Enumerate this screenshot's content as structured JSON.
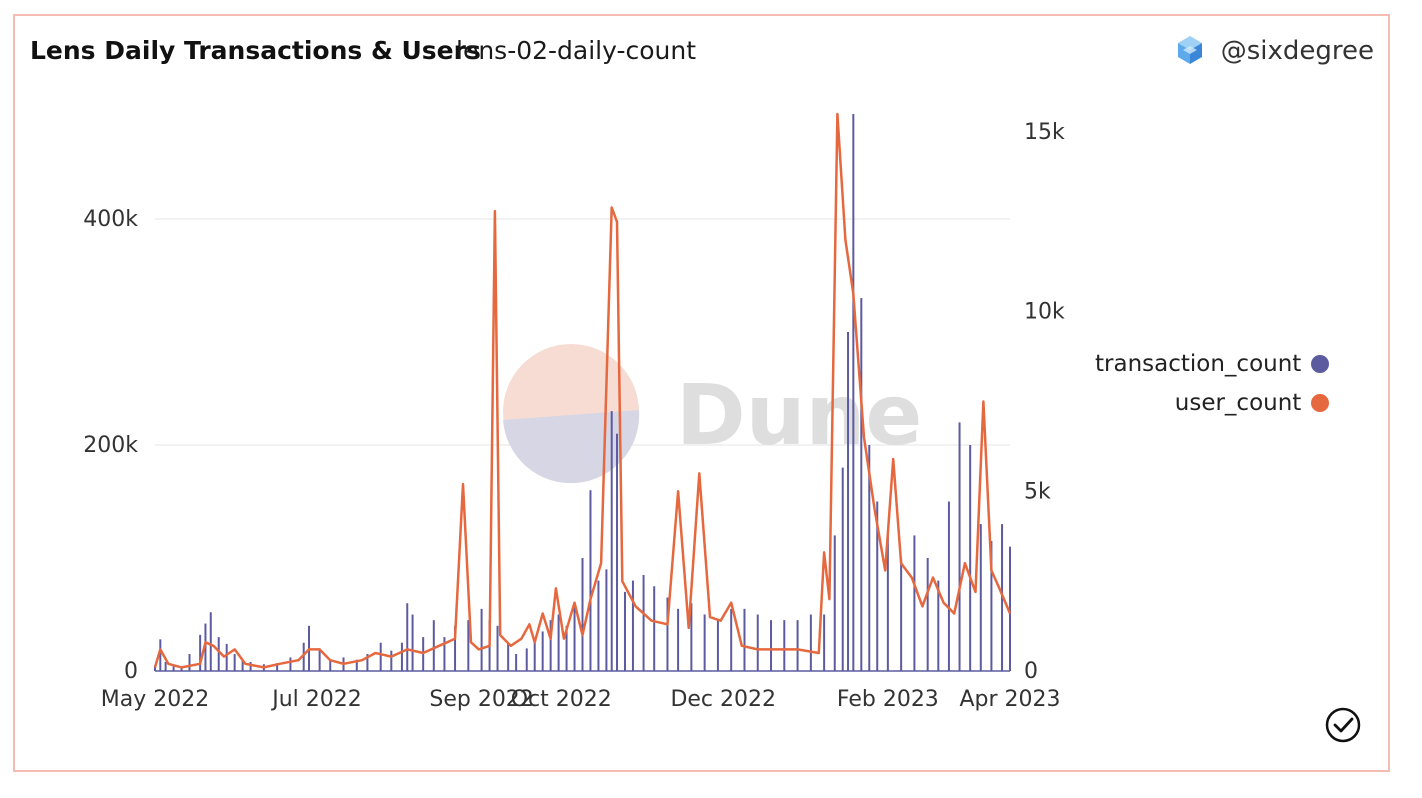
{
  "header": {
    "title": "Lens Daily Transactions & Users",
    "subtitle": "lens-02-daily-count",
    "author": "@sixdegree"
  },
  "watermark": {
    "text": "Dune"
  },
  "colors": {
    "transaction_count": "#5d5ba0",
    "user_count": "#e5683f",
    "grid": "#e6e6e6",
    "border": "#f4bcb2"
  },
  "icons": {
    "author_logo": "stacked-cubes-icon",
    "status": "check-circle-icon"
  },
  "legend": [
    {
      "label": "transaction_count",
      "color": "#5d5ba0"
    },
    {
      "label": "user_count",
      "color": "#e5683f"
    }
  ],
  "chart_data": {
    "type": "bar+line",
    "x_range": [
      "2022-05-15",
      "2023-04-02"
    ],
    "x_ticks": [
      "May 2022",
      "Jul 2022",
      "Sep 2022",
      "Oct 2022",
      "Dec 2022",
      "Feb 2023",
      "Apr 2023"
    ],
    "left_axis": {
      "ticks": [
        "0",
        "200k",
        "400k"
      ],
      "range": [
        0,
        400000
      ]
    },
    "right_axis": {
      "ticks": [
        "0",
        "5k",
        "10k",
        "15k"
      ],
      "range": [
        0,
        15000
      ]
    },
    "grid": true,
    "legend_position": "right",
    "series": [
      {
        "name": "transaction_count",
        "kind": "bar",
        "axis": "left",
        "points": [
          [
            "2022-05-15",
            5000
          ],
          [
            "2022-05-17",
            28000
          ],
          [
            "2022-05-19",
            8000
          ],
          [
            "2022-05-22",
            4000
          ],
          [
            "2022-05-25",
            3000
          ],
          [
            "2022-05-28",
            15000
          ],
          [
            "2022-06-01",
            32000
          ],
          [
            "2022-06-03",
            42000
          ],
          [
            "2022-06-05",
            52000
          ],
          [
            "2022-06-08",
            30000
          ],
          [
            "2022-06-11",
            24000
          ],
          [
            "2022-06-14",
            15000
          ],
          [
            "2022-06-17",
            10000
          ],
          [
            "2022-06-20",
            8000
          ],
          [
            "2022-06-25",
            6000
          ],
          [
            "2022-06-30",
            7000
          ],
          [
            "2022-07-05",
            12000
          ],
          [
            "2022-07-10",
            25000
          ],
          [
            "2022-07-12",
            40000
          ],
          [
            "2022-07-16",
            20000
          ],
          [
            "2022-07-20",
            10000
          ],
          [
            "2022-07-25",
            12000
          ],
          [
            "2022-07-30",
            10000
          ],
          [
            "2022-08-03",
            15000
          ],
          [
            "2022-08-08",
            25000
          ],
          [
            "2022-08-12",
            18000
          ],
          [
            "2022-08-16",
            25000
          ],
          [
            "2022-08-18",
            60000
          ],
          [
            "2022-08-20",
            50000
          ],
          [
            "2022-08-24",
            30000
          ],
          [
            "2022-08-28",
            45000
          ],
          [
            "2022-09-01",
            30000
          ],
          [
            "2022-09-05",
            40000
          ],
          [
            "2022-09-10",
            45000
          ],
          [
            "2022-09-15",
            55000
          ],
          [
            "2022-09-18",
            45000
          ],
          [
            "2022-09-21",
            40000
          ],
          [
            "2022-09-25",
            25000
          ],
          [
            "2022-09-28",
            15000
          ],
          [
            "2022-10-02",
            20000
          ],
          [
            "2022-10-05",
            25000
          ],
          [
            "2022-10-08",
            35000
          ],
          [
            "2022-10-11",
            45000
          ],
          [
            "2022-10-14",
            50000
          ],
          [
            "2022-10-17",
            40000
          ],
          [
            "2022-10-20",
            60000
          ],
          [
            "2022-10-23",
            100000
          ],
          [
            "2022-10-26",
            160000
          ],
          [
            "2022-10-29",
            80000
          ],
          [
            "2022-11-01",
            90000
          ],
          [
            "2022-11-03",
            230000
          ],
          [
            "2022-11-05",
            210000
          ],
          [
            "2022-11-08",
            70000
          ],
          [
            "2022-11-11",
            80000
          ],
          [
            "2022-11-15",
            85000
          ],
          [
            "2022-11-19",
            75000
          ],
          [
            "2022-11-24",
            65000
          ],
          [
            "2022-11-28",
            55000
          ],
          [
            "2022-12-03",
            60000
          ],
          [
            "2022-12-08",
            50000
          ],
          [
            "2022-12-13",
            45000
          ],
          [
            "2022-12-18",
            55000
          ],
          [
            "2022-12-23",
            55000
          ],
          [
            "2022-12-28",
            50000
          ],
          [
            "2023-01-02",
            45000
          ],
          [
            "2023-01-07",
            45000
          ],
          [
            "2023-01-12",
            45000
          ],
          [
            "2023-01-17",
            50000
          ],
          [
            "2023-01-22",
            50000
          ],
          [
            "2023-01-26",
            120000
          ],
          [
            "2023-01-29",
            180000
          ],
          [
            "2023-01-31",
            300000
          ],
          [
            "2023-02-02",
            500000
          ],
          [
            "2023-02-05",
            330000
          ],
          [
            "2023-02-08",
            200000
          ],
          [
            "2023-02-11",
            150000
          ],
          [
            "2023-02-15",
            120000
          ],
          [
            "2023-02-20",
            100000
          ],
          [
            "2023-02-25",
            120000
          ],
          [
            "2023-03-02",
            100000
          ],
          [
            "2023-03-06",
            80000
          ],
          [
            "2023-03-10",
            150000
          ],
          [
            "2023-03-14",
            220000
          ],
          [
            "2023-03-18",
            200000
          ],
          [
            "2023-03-22",
            130000
          ],
          [
            "2023-03-26",
            115000
          ],
          [
            "2023-03-30",
            130000
          ],
          [
            "2023-04-02",
            110000
          ]
        ]
      },
      {
        "name": "user_count",
        "kind": "line",
        "axis": "right",
        "points": [
          [
            "2022-05-15",
            100
          ],
          [
            "2022-05-17",
            600
          ],
          [
            "2022-05-20",
            200
          ],
          [
            "2022-05-25",
            100
          ],
          [
            "2022-06-01",
            200
          ],
          [
            "2022-06-03",
            800
          ],
          [
            "2022-06-06",
            700
          ],
          [
            "2022-06-10",
            400
          ],
          [
            "2022-06-14",
            600
          ],
          [
            "2022-06-18",
            200
          ],
          [
            "2022-06-25",
            100
          ],
          [
            "2022-07-01",
            200
          ],
          [
            "2022-07-08",
            300
          ],
          [
            "2022-07-12",
            600
          ],
          [
            "2022-07-16",
            600
          ],
          [
            "2022-07-20",
            300
          ],
          [
            "2022-07-25",
            200
          ],
          [
            "2022-08-01",
            300
          ],
          [
            "2022-08-06",
            500
          ],
          [
            "2022-08-12",
            400
          ],
          [
            "2022-08-18",
            600
          ],
          [
            "2022-08-24",
            500
          ],
          [
            "2022-08-30",
            700
          ],
          [
            "2022-09-02",
            800
          ],
          [
            "2022-09-05",
            900
          ],
          [
            "2022-09-08",
            5200
          ],
          [
            "2022-09-11",
            800
          ],
          [
            "2022-09-14",
            600
          ],
          [
            "2022-09-18",
            700
          ],
          [
            "2022-09-20",
            12800
          ],
          [
            "2022-09-22",
            1000
          ],
          [
            "2022-09-26",
            700
          ],
          [
            "2022-09-30",
            900
          ],
          [
            "2022-10-03",
            1300
          ],
          [
            "2022-10-05",
            800
          ],
          [
            "2022-10-08",
            1600
          ],
          [
            "2022-10-11",
            900
          ],
          [
            "2022-10-13",
            2300
          ],
          [
            "2022-10-16",
            900
          ],
          [
            "2022-10-20",
            1900
          ],
          [
            "2022-10-23",
            1000
          ],
          [
            "2022-10-26",
            2000
          ],
          [
            "2022-10-30",
            3000
          ],
          [
            "2022-11-03",
            12900
          ],
          [
            "2022-11-05",
            12500
          ],
          [
            "2022-11-07",
            2500
          ],
          [
            "2022-11-12",
            1800
          ],
          [
            "2022-11-18",
            1400
          ],
          [
            "2022-11-24",
            1300
          ],
          [
            "2022-11-28",
            5000
          ],
          [
            "2022-12-02",
            1200
          ],
          [
            "2022-12-06",
            5500
          ],
          [
            "2022-12-10",
            1500
          ],
          [
            "2022-12-14",
            1400
          ],
          [
            "2022-12-18",
            1900
          ],
          [
            "2022-12-22",
            700
          ],
          [
            "2022-12-28",
            600
          ],
          [
            "2023-01-04",
            600
          ],
          [
            "2023-01-12",
            600
          ],
          [
            "2023-01-20",
            500
          ],
          [
            "2023-01-22",
            3300
          ],
          [
            "2023-01-24",
            2000
          ],
          [
            "2023-01-27",
            15700
          ],
          [
            "2023-01-30",
            12000
          ],
          [
            "2023-02-02",
            10500
          ],
          [
            "2023-02-06",
            6500
          ],
          [
            "2023-02-10",
            4500
          ],
          [
            "2023-02-14",
            2800
          ],
          [
            "2023-02-17",
            5900
          ],
          [
            "2023-02-20",
            3000
          ],
          [
            "2023-02-24",
            2600
          ],
          [
            "2023-02-28",
            1800
          ],
          [
            "2023-03-04",
            2600
          ],
          [
            "2023-03-08",
            1900
          ],
          [
            "2023-03-12",
            1600
          ],
          [
            "2023-03-16",
            3000
          ],
          [
            "2023-03-20",
            2200
          ],
          [
            "2023-03-23",
            7500
          ],
          [
            "2023-03-26",
            2800
          ],
          [
            "2023-03-29",
            2300
          ],
          [
            "2023-04-02",
            1600
          ]
        ]
      }
    ]
  }
}
